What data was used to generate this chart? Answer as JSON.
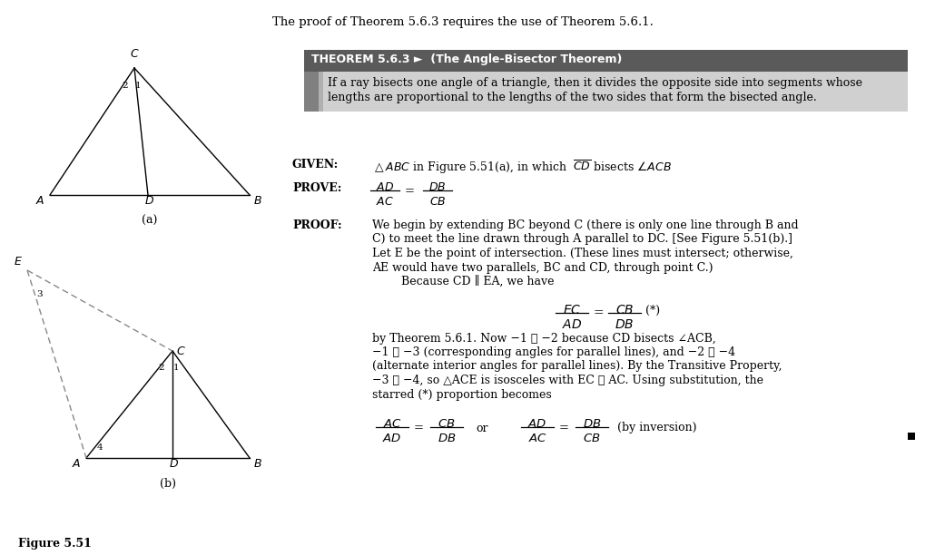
{
  "bg_color": "#ffffff",
  "top_text": "The proof of Theorem 5.6.3 requires the use of Theorem 5.6.1.",
  "theorem_header": "THEOREM 5.6.3 ►  (The Angle-Bisector Theorem)",
  "theorem_body_line1": "If a ray bisects one angle of a triangle, then it divides the opposite side into segments whose",
  "theorem_body_line2": "lengths are proportional to the lengths of the two sides that form the bisected angle.",
  "theorem_header_bg": "#5a5a5a",
  "theorem_body_bg": "#d0d0d0",
  "theorem_side_bg1": "#808080",
  "theorem_side_bg2": "#b0b0b0",
  "given_label": "GIVEN:",
  "prove_label": "PROVE:",
  "proof_label": "PROOF:",
  "fig_label": "Figure 5.51",
  "fig_a_label": "(a)",
  "fig_b_label": "(b)",
  "proof_text1_lines": [
    "We begin by extending BC beyond C (there is only one line through B and",
    "C) to meet the line drawn through A parallel to DC. [See Figure 5.51(b).]",
    "Let E be the point of intersection. (These lines must intersect; otherwise,",
    "AE would have two parallels, BC and CD, through point C.)",
    "        Because CD ∥ EA, we have"
  ],
  "proof_text2_lines": [
    "by Theorem 5.6.1. Now −1 ≅ −2 because CD bisects ∠ACB,",
    "−1 ≅ −3 (corresponding angles for parallel lines), and −2 ≅ −4",
    "(alternate interior angles for parallel lines). By the Transitive Property,",
    "−3 ≅ −4, so △ACE is isosceles with EC ≅ AC. Using substitution, the",
    "starred (*) proportion becomes"
  ],
  "bottom_or": "or",
  "bottom_inv": "(by inversion)"
}
